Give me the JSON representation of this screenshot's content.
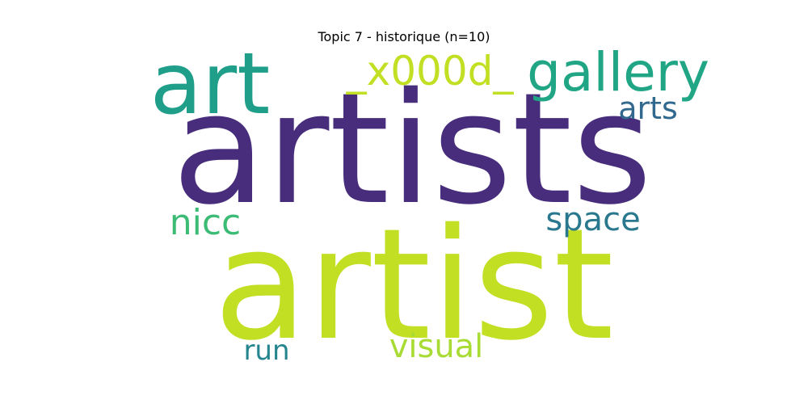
{
  "chart_data": {
    "type": "wordcloud",
    "title": "Topic 7 - historique (n=10)",
    "words": [
      {
        "text": "artists",
        "color": "#472d7b"
      },
      {
        "text": "artist",
        "color": "#c2df23"
      },
      {
        "text": "art",
        "color": "#1f9e89"
      },
      {
        "text": "gallery",
        "color": "#21a685"
      },
      {
        "text": "_x000d_",
        "color": "#c2df23"
      },
      {
        "text": "arts",
        "color": "#31688e"
      },
      {
        "text": "nicc",
        "color": "#3cbb75"
      },
      {
        "text": "space",
        "color": "#2a788e"
      },
      {
        "text": "run",
        "color": "#25858e"
      },
      {
        "text": "visual",
        "color": "#a8db34"
      }
    ]
  }
}
